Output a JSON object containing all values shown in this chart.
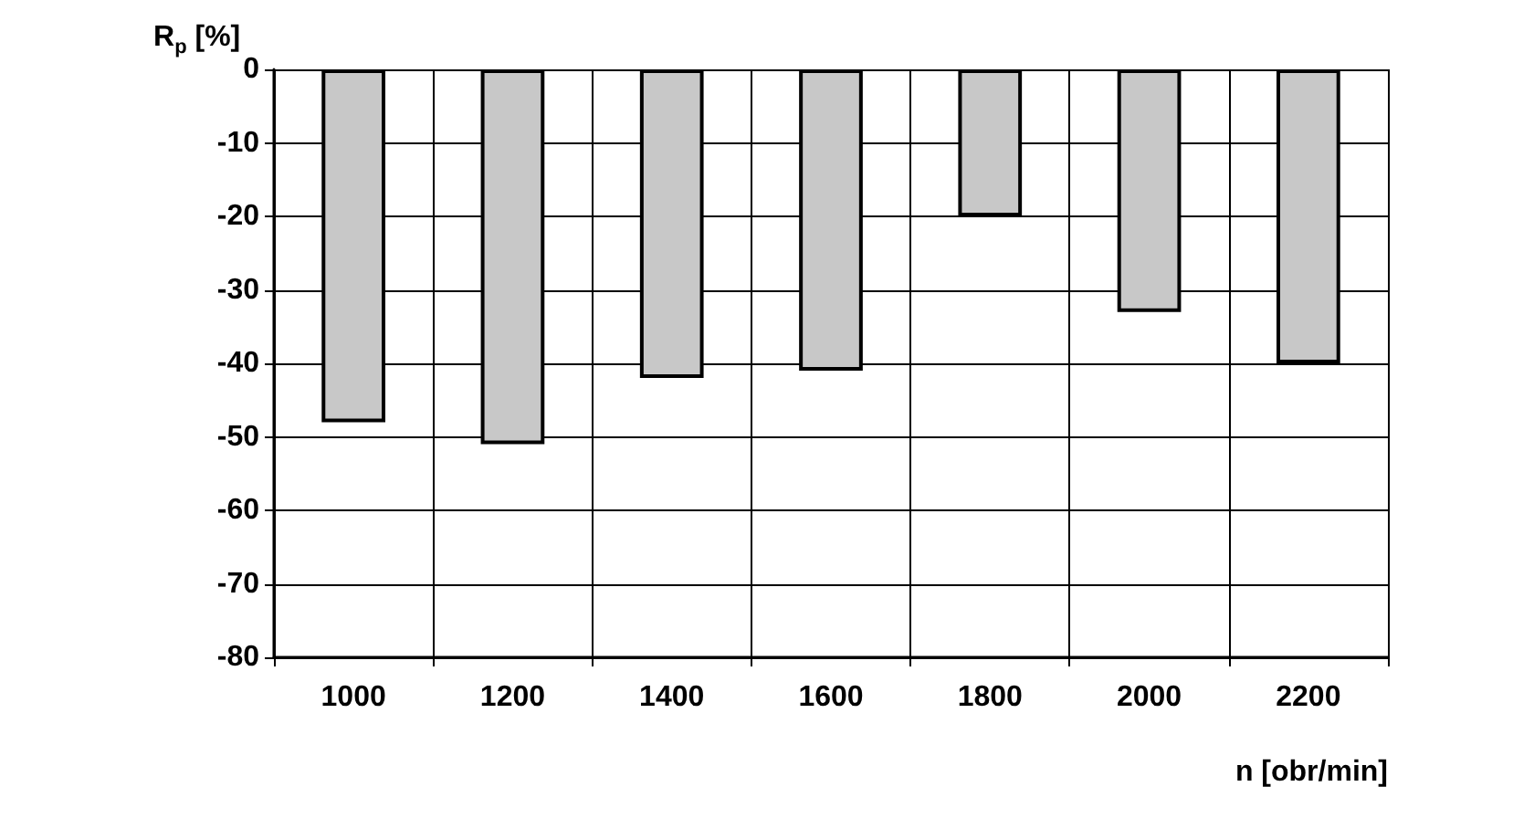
{
  "chart_data": {
    "type": "bar",
    "xlabel": "n [obr/min]",
    "ylabel": "R$_{p}$ [%]",
    "categories": [
      "1000",
      "1200",
      "1400",
      "1600",
      "1800",
      "2000",
      "2200"
    ],
    "values": [
      -48,
      -51,
      -42,
      -41,
      -20,
      -33,
      -40
    ],
    "color": "#c8c8c8",
    "ylim": [
      -80,
      0
    ],
    "yticks": [
      -80,
      -70,
      -60,
      -50,
      -40,
      -30,
      -20,
      -10,
      0
    ],
    "grid": true
  }
}
